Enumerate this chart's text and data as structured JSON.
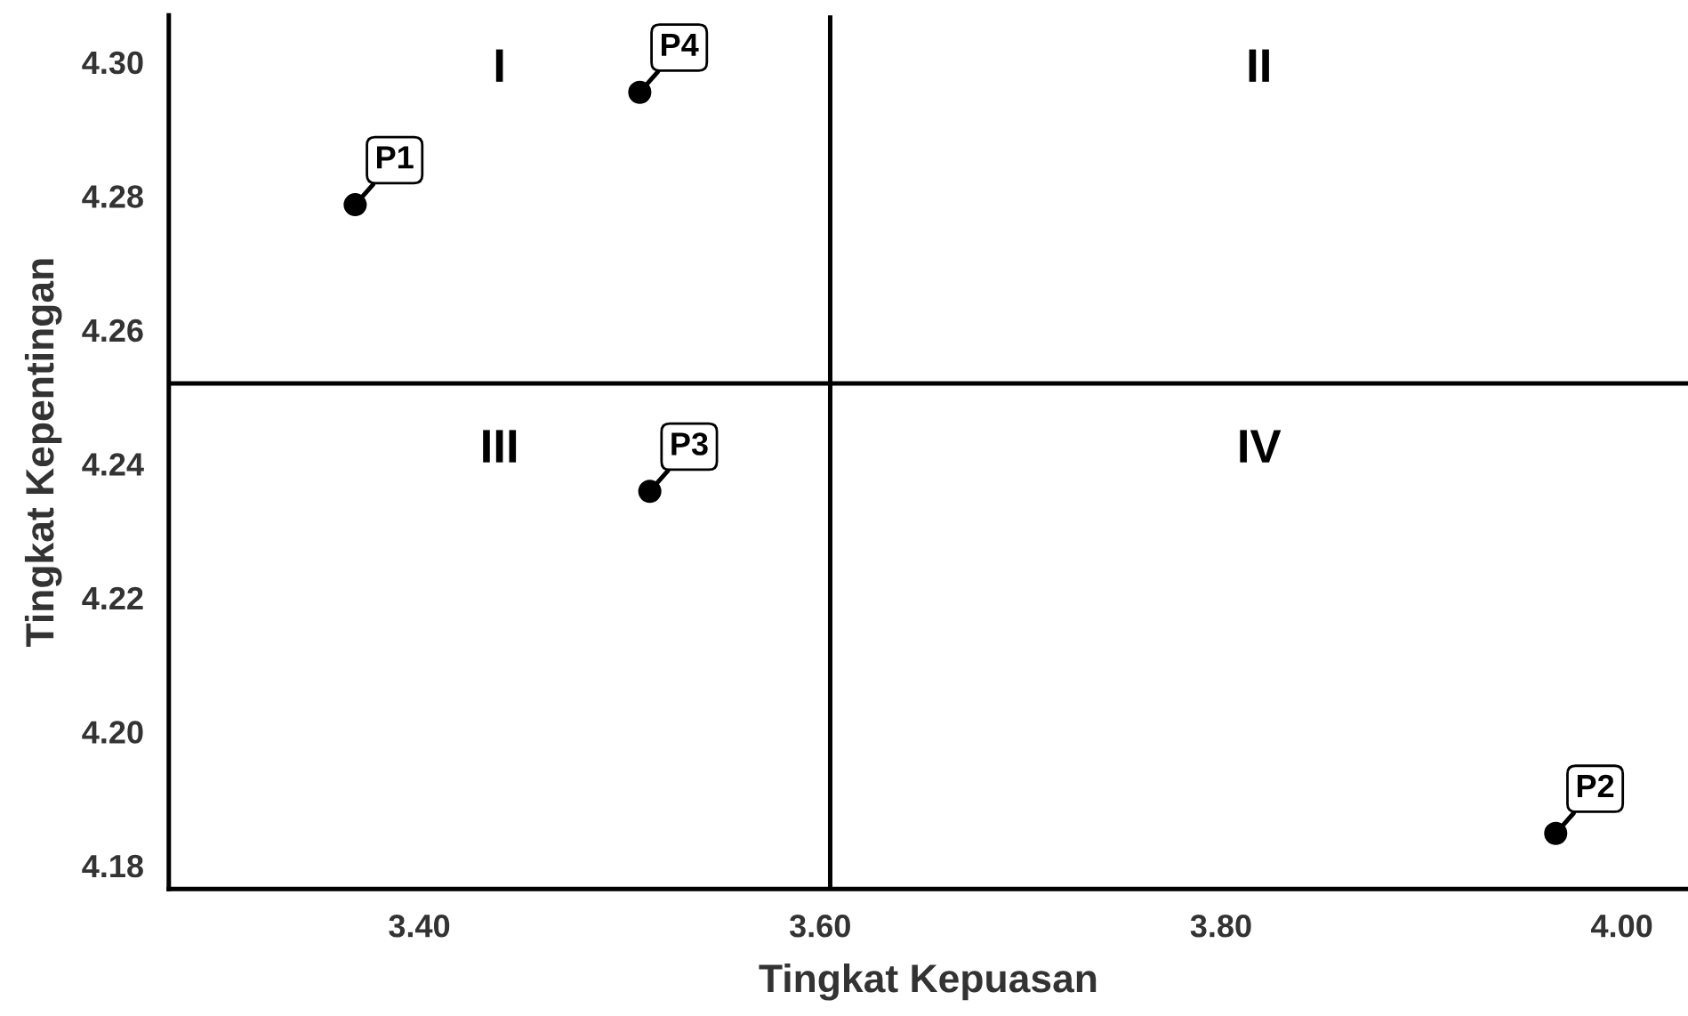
{
  "chart_data": {
    "type": "scatter",
    "xlabel": "Tingkat Kepuasan",
    "ylabel": "Tingkat Kepentingan",
    "x": [
      3.368,
      3.967,
      3.515,
      3.51
    ],
    "values": [
      4.2787,
      4.1848,
      4.2359,
      4.2955
    ],
    "color": "#000000",
    "marker": "circle",
    "xlim": [
      3.275,
      4.033
    ],
    "xticks": [
      {
        "value": 3.4,
        "label": "3.40"
      },
      {
        "value": 3.6,
        "label": "3.60"
      },
      {
        "value": 3.8,
        "label": "3.80"
      },
      {
        "value": 4.0,
        "label": "4.00"
      }
    ],
    "ylim": [
      4.1765,
      4.307
    ],
    "yticks": [
      {
        "value": 4.18,
        "label": "4.18"
      },
      {
        "value": 4.2,
        "label": "4.20"
      },
      {
        "value": 4.22,
        "label": "4.22"
      },
      {
        "value": 4.24,
        "label": "4.24"
      },
      {
        "value": 4.26,
        "label": "4.26"
      },
      {
        "value": 4.28,
        "label": "4.28"
      },
      {
        "value": 4.3,
        "label": "4.30"
      }
    ],
    "grid": false,
    "ref_lines": [
      {
        "axis": "x",
        "value": 3.605,
        "color": "#000000"
      },
      {
        "axis": "y",
        "value": 4.252,
        "color": "#000000"
      }
    ],
    "annotations": [
      {
        "text": "P1",
        "x": 3.368,
        "y": 4.2787
      },
      {
        "text": "P2",
        "x": 3.967,
        "y": 4.1848
      },
      {
        "text": "P3",
        "x": 3.515,
        "y": 4.2359
      },
      {
        "text": "P4",
        "x": 3.51,
        "y": 4.2955
      },
      "I",
      "II",
      "III",
      "IV"
    ]
  }
}
